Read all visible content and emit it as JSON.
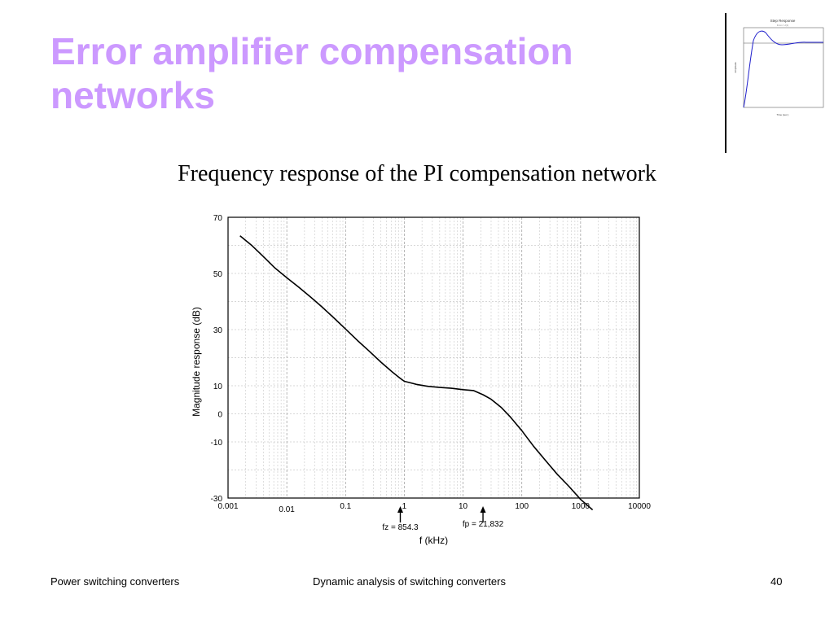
{
  "slide": {
    "title": "Error amplifier compensation networks",
    "subtitle": "Frequency response of the PI compensation network",
    "accent_color": "#cc99ff"
  },
  "thumbnail": {
    "title": "Step Response",
    "subtitle": "From: U(1)",
    "ylabel": "Amplitude",
    "xlabel": "Time (sec.)",
    "line_color": "#1f1fcc"
  },
  "chart_data": {
    "type": "line",
    "xscale": "log",
    "xlabel": "f (kHz)",
    "ylabel": "Magnitude response (dB)",
    "xlim": [
      0.001,
      10000
    ],
    "ylim": [
      -30,
      70
    ],
    "xticks": [
      {
        "value": 0.001,
        "label": "0.001"
      },
      {
        "value": 0.01,
        "label": "0.01"
      },
      {
        "value": 0.1,
        "label": "0.1"
      },
      {
        "value": 1,
        "label": "1"
      },
      {
        "value": 10,
        "label": "10"
      },
      {
        "value": 100,
        "label": "100"
      },
      {
        "value": 1000,
        "label": "1000"
      },
      {
        "value": 10000,
        "label": "10000"
      }
    ],
    "yticks": [
      {
        "value": 70,
        "label": "70"
      },
      {
        "value": 50,
        "label": "50"
      },
      {
        "value": 30,
        "label": "30"
      },
      {
        "value": 10,
        "label": "10"
      },
      {
        "value": 0,
        "label": "0"
      },
      {
        "value": -10,
        "label": "-10"
      },
      {
        "value": -30,
        "label": "-30"
      }
    ],
    "grid": true,
    "line_color": "#000000",
    "series": [
      {
        "x": [
          0.0016,
          0.0025,
          0.004,
          0.0063,
          0.01,
          0.0158,
          0.025,
          0.04,
          0.063,
          0.1,
          0.158,
          0.25,
          0.4,
          0.63,
          0.854,
          1.0,
          1.6,
          2.5,
          4.0,
          6.3,
          10,
          15,
          21.8,
          30,
          45,
          63,
          100,
          158,
          250,
          400,
          630,
          1000,
          1600
        ],
        "y": [
          63.4,
          60.1,
          56.0,
          51.9,
          48.5,
          45.2,
          41.7,
          38.0,
          34.2,
          30.2,
          26.2,
          22.4,
          18.4,
          14.8,
          12.6,
          11.6,
          10.5,
          9.8,
          9.4,
          9.1,
          8.6,
          8.3,
          6.8,
          5.2,
          2.2,
          -1.0,
          -6.0,
          -11.5,
          -16.5,
          -21.5,
          -25.8,
          -30.5,
          -34.2
        ]
      }
    ],
    "annotations": [
      {
        "label": "fz = 854.3",
        "x": 0.8543,
        "arrow": "up"
      },
      {
        "label": "fp = 21,832",
        "x": 21.832,
        "arrow": "up"
      }
    ]
  },
  "footer": {
    "left": "Power switching converters",
    "center": "Dynamic analysis of switching converters",
    "page_number": "40"
  }
}
